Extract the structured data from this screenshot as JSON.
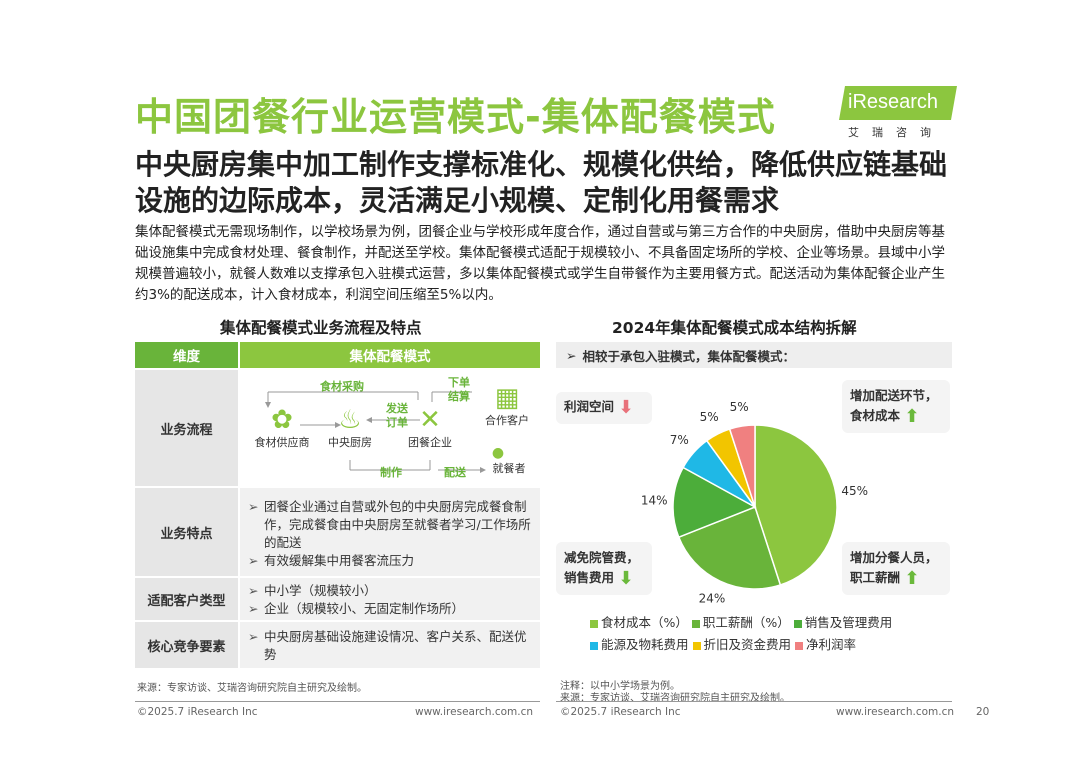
{
  "title": "中国团餐行业运营模式-集体配餐模式",
  "logo": {
    "name": "iResearch",
    "sub": "艾瑞咨询",
    "color": "#8cc63f"
  },
  "subtitle": "中央厨房集中加工制作支撑标准化、规模化供给，降低供应链基础设施的边际成本，灵活满足小规模、定制化用餐需求",
  "intro": "集体配餐模式无需现场制作，以学校场景为例，团餐企业与学校形成年度合作，通过自营或与第三方合作的中央厨房，借助中央厨房等基础设施集中完成食材处理、餐食制作，并配送至学校。集体配餐模式适配于规模较小、不具备固定场所的学校、企业等场景。县域中小学规模普遍较小，就餐人数难以支撑承包入驻模式运营，多以集体配餐模式或学生自带餐作为主要用餐方式。配送活动为集体配餐企业产生约3%的配送成本，计入食材成本，利润空间压缩至5%以内。",
  "left": {
    "title": "集体配餐模式业务流程及特点",
    "header": {
      "col1": "维度",
      "col2": "集体配餐模式"
    },
    "rows": {
      "flow": {
        "label": "业务流程",
        "nodes": {
          "supplier": "食材供应商",
          "kitchen": "中央厨房",
          "company": "团餐企业",
          "partner": "合作客户",
          "diner": "就餐者"
        },
        "labels": {
          "purchase": "食材采购",
          "order": "下单",
          "settle": "结算",
          "send_order_1": "发送",
          "send_order_2": "订单",
          "make": "制作",
          "deliver": "配送"
        }
      },
      "features": {
        "label": "业务特点",
        "bullets": [
          "团餐企业通过自营或外包的中央厨房完成餐食制作，完成餐食由中央厨房至就餐者学习/工作场所的配送",
          "有效缓解集中用餐客流压力"
        ]
      },
      "clients": {
        "label": "适配客户类型",
        "bullets": [
          "中小学（规模较小）",
          "企业（规模较小、无固定制作场所）"
        ]
      },
      "core": {
        "label": "核心竞争要素",
        "bullets": [
          "中央厨房基础设施建设情况、客户关系、配送优势"
        ]
      }
    },
    "source": "来源：专家访谈、艾瑞咨询研究院自主研究及绘制。"
  },
  "right": {
    "title": "2024年集体配餐模式成本结构拆解",
    "compare": "相较于承包入驻模式，集体配餐模式：",
    "callouts": {
      "profit": "利润空间",
      "delivery": "增加配送环节，食材成本",
      "rent": "减免院管费，销售费用",
      "staff": "增加分餐人员，职工薪酬"
    },
    "note1": "注释：以中小学场景为例。",
    "note2": "来源：专家访谈、艾瑞咨询研究院自主研究及绘制。"
  },
  "chart_data": {
    "type": "pie",
    "title": "2024年集体配餐模式成本结构拆解",
    "series": [
      {
        "name": "食材成本（%）",
        "value": 45,
        "label": "45%",
        "color": "#8cc63f"
      },
      {
        "name": "职工薪酬（%）",
        "value": 24,
        "label": "24%",
        "color": "#69b43a"
      },
      {
        "name": "销售及管理费用",
        "value": 14,
        "label": "14%",
        "color": "#4cad3a"
      },
      {
        "name": "能源及物耗费用",
        "value": 7,
        "label": "7%",
        "color": "#1fb8e6"
      },
      {
        "name": "折旧及资金费用",
        "value": 5,
        "label": "5%",
        "color": "#f2c500"
      },
      {
        "name": "净利润率",
        "value": 5,
        "label": "5%",
        "color": "#f08080"
      }
    ]
  },
  "footer": {
    "left_copy": "©2025.7 iResearch Inc",
    "left_url": "www.iresearch.com.cn",
    "right_copy": "©2025.7 iResearch Inc",
    "right_url": "www.iresearch.com.cn",
    "page": "20"
  }
}
